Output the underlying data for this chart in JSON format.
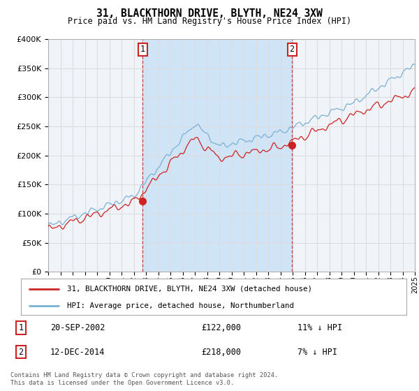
{
  "title": "31, BLACKTHORN DRIVE, BLYTH, NE24 3XW",
  "subtitle": "Price paid vs. HM Land Registry's House Price Index (HPI)",
  "ylim": [
    0,
    400000
  ],
  "yticks": [
    0,
    50000,
    100000,
    150000,
    200000,
    250000,
    300000,
    350000,
    400000
  ],
  "fig_bg_color": "#ffffff",
  "plot_bg_color": "#f0f4f8",
  "shade_color": "#d0e4f7",
  "grid_color": "#dddddd",
  "hpi_color": "#7ab0d4",
  "price_color": "#cc2222",
  "sale1_yr": 2002.72,
  "sale1_val": 122000,
  "sale2_yr": 2014.95,
  "sale2_val": 218000,
  "legend_line1": "31, BLACKTHORN DRIVE, BLYTH, NE24 3XW (detached house)",
  "legend_line2": "HPI: Average price, detached house, Northumberland",
  "table_row1": [
    "1",
    "20-SEP-2002",
    "£122,000",
    "11% ↓ HPI"
  ],
  "table_row2": [
    "2",
    "12-DEC-2014",
    "£218,000",
    "7% ↓ HPI"
  ],
  "footer": "Contains HM Land Registry data © Crown copyright and database right 2024.\nThis data is licensed under the Open Government Licence v3.0.",
  "start_year": 1995,
  "end_year": 2025
}
